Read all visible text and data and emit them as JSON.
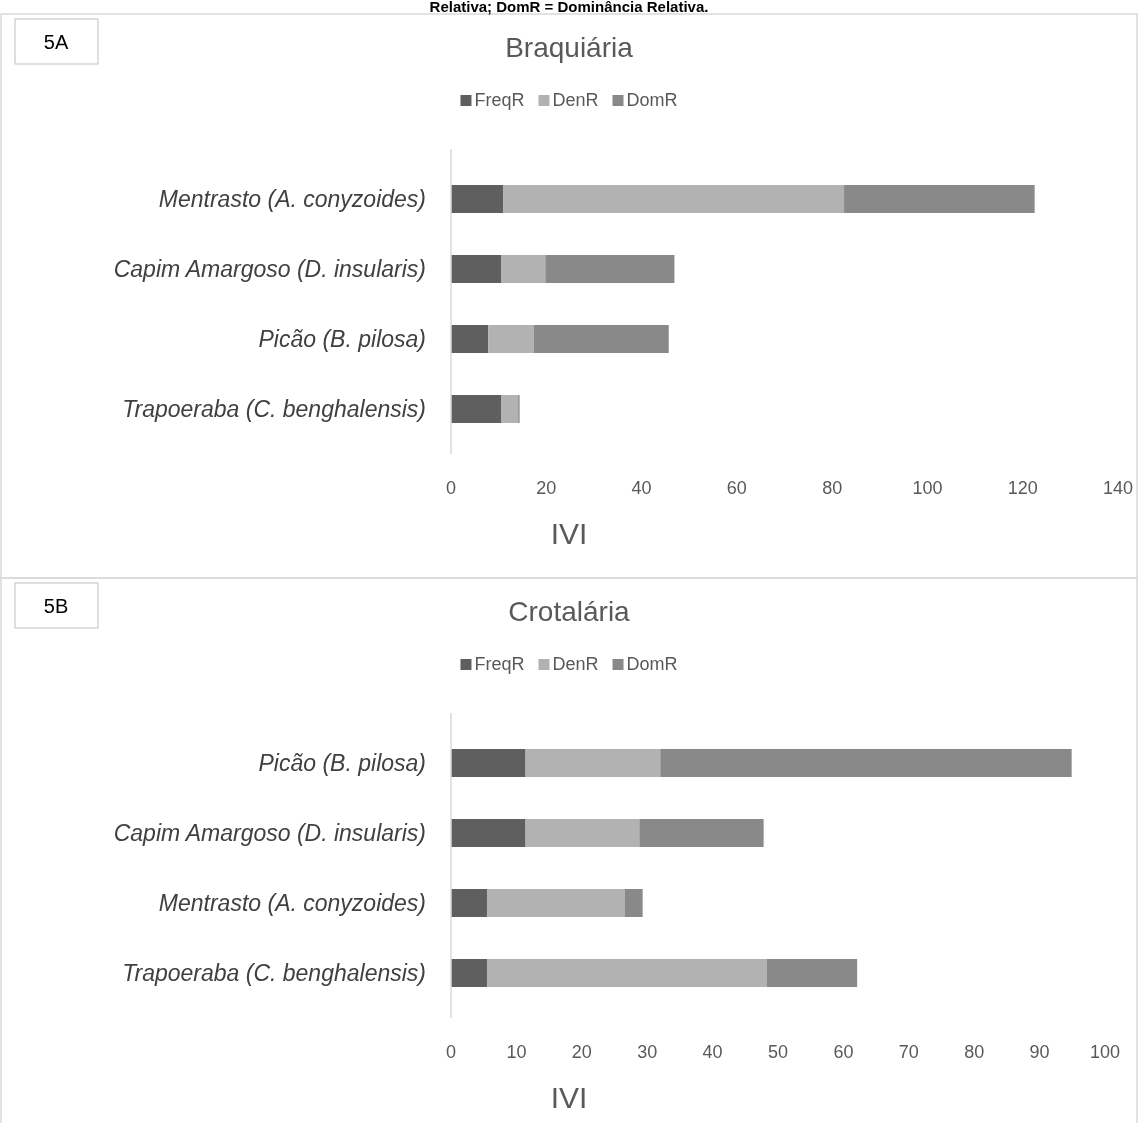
{
  "chart_data": [
    {
      "type": "bar",
      "orientation": "horizontal",
      "stacked": true,
      "title": "Braquiária",
      "xlabel": "IVI",
      "legend": "top",
      "grid": false,
      "annotations": [
        "Relativa; DomR = Dominância Relativa.",
        "5A"
      ],
      "categories": [
        "Mentrasto (A. conyzoides)",
        "Capim Amargoso (D. insularis)",
        "Picão (B. pilosa)",
        "Trapoeraba (C. benghalensis)"
      ],
      "xlim": [
        0,
        140
      ],
      "xticks": [
        0,
        20,
        40,
        60,
        80,
        100,
        120,
        140
      ],
      "series": [
        {
          "name": "FreqR",
          "color": "#5f5f5f",
          "values": [
            11,
            10.5,
            7.8,
            10.5
          ]
        },
        {
          "name": "DenR",
          "color": "#b2b2b2",
          "values": [
            71.5,
            9.3,
            9.6,
            3.6
          ]
        },
        {
          "name": "DomR",
          "color": "#898989",
          "values": [
            40,
            27.1,
            28.3,
            0.3
          ]
        }
      ]
    },
    {
      "type": "bar",
      "orientation": "horizontal",
      "stacked": true,
      "title": "Crotalária",
      "xlabel": "IVI",
      "legend": "top",
      "grid": false,
      "annotations": [
        "5B"
      ],
      "categories": [
        "Picão (B. pilosa)",
        "Capim Amargoso (D. insularis)",
        "Mentrasto (A. conyzoides)",
        "Trapoeraba (C. benghalensis)"
      ],
      "xlim": [
        0,
        100
      ],
      "xticks": [
        0,
        10,
        20,
        30,
        40,
        50,
        60,
        70,
        80,
        90,
        100
      ],
      "series": [
        {
          "name": "FreqR",
          "color": "#5f5f5f",
          "values": [
            11.4,
            11.4,
            5.5,
            5.5
          ]
        },
        {
          "name": "DenR",
          "color": "#b2b2b2",
          "values": [
            20.6,
            17.4,
            21.1,
            42.8
          ]
        },
        {
          "name": "DomR",
          "color": "#898989",
          "values": [
            62.9,
            19.0,
            2.7,
            13.8
          ]
        }
      ]
    }
  ]
}
